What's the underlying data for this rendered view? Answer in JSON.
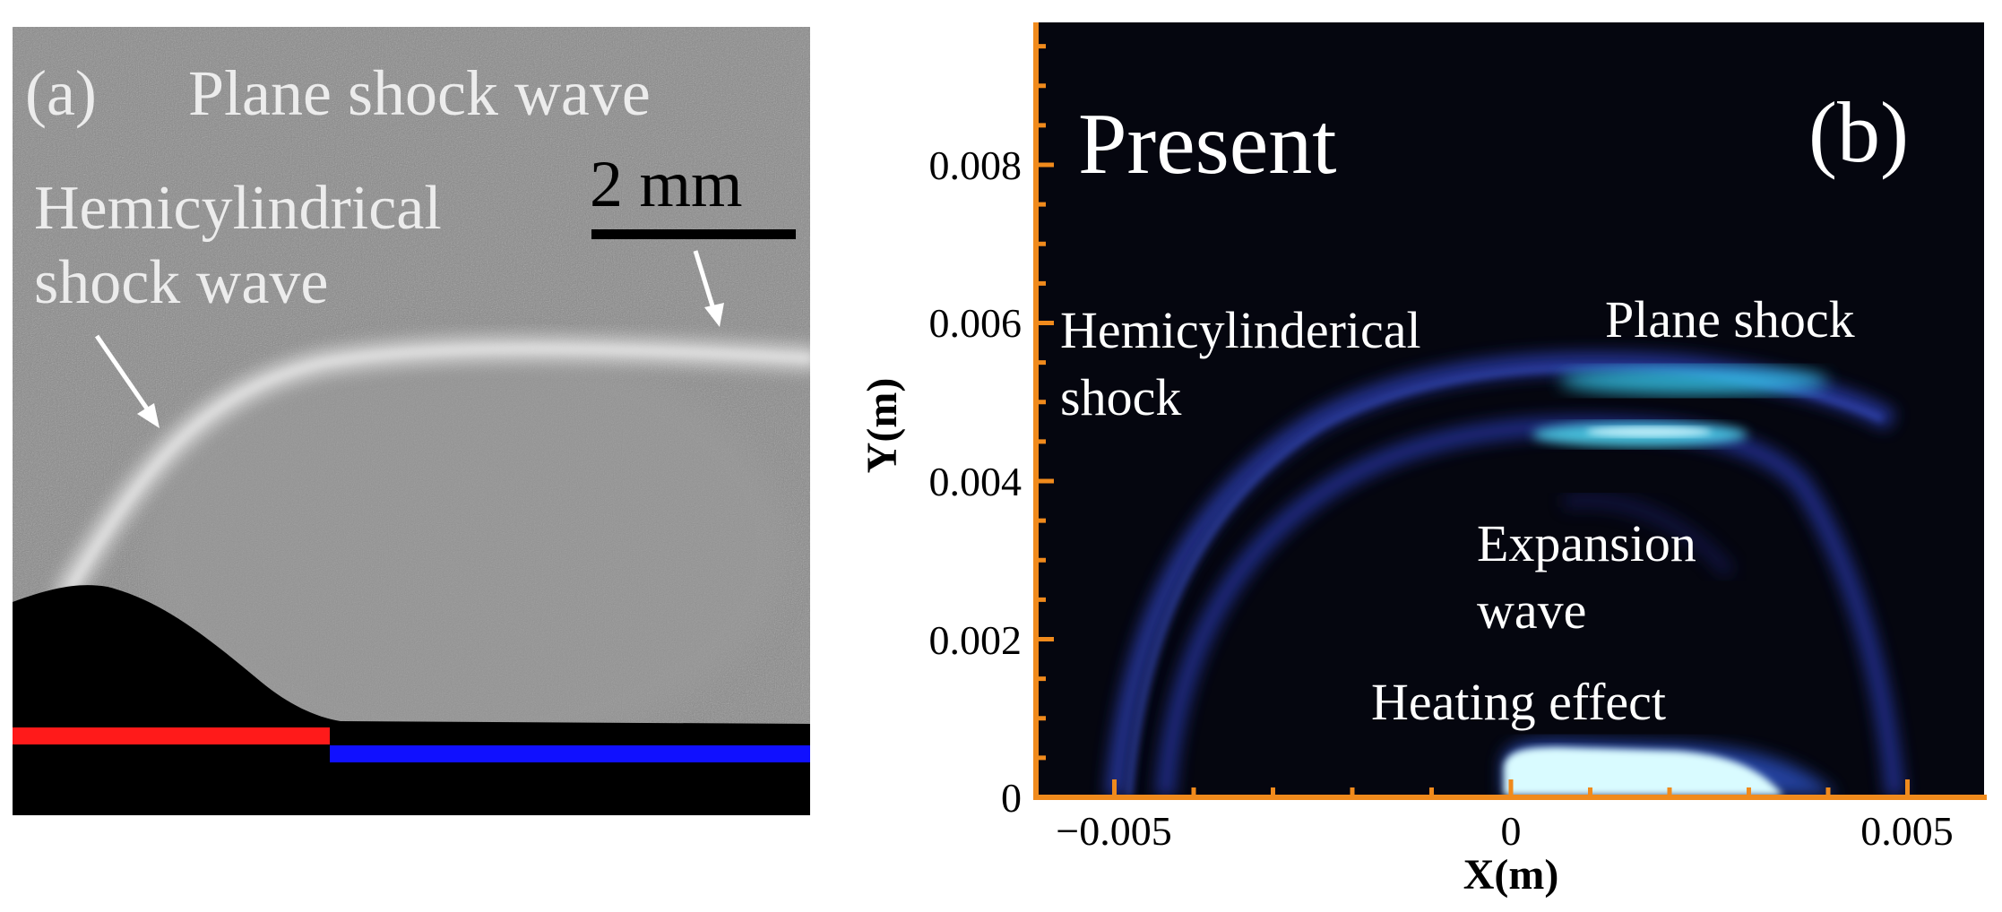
{
  "panel_a": {
    "label": "(a)",
    "title": "Plane shock wave",
    "scale_bar": "2 mm",
    "annotation_line1": "Hemicylindrical",
    "annotation_line2": "shock wave"
  },
  "panel_b": {
    "label": "(b)",
    "title": "Present",
    "annotations": {
      "hemi_line1": "Hemicylinderical",
      "hemi_line2": "shock",
      "plane": "Plane shock",
      "expansion_line1": "Expansion",
      "expansion_line2": "wave",
      "heating": "Heating effect"
    },
    "xlabel": "X(m)",
    "ylabel": "Y(m)",
    "x_ticks": [
      "−0.005",
      "0",
      "0.005"
    ],
    "y_ticks": [
      "0",
      "0.002",
      "0.004",
      "0.006",
      "0.008"
    ],
    "axis_color": "#f08a1c"
  },
  "colors": {
    "panel_b_background": "#05060f",
    "shock_blue": "#2b3fb0",
    "shock_cyan": "#37c8e8",
    "bar_red": "#ff1a1a",
    "bar_blue": "#1010ff"
  }
}
